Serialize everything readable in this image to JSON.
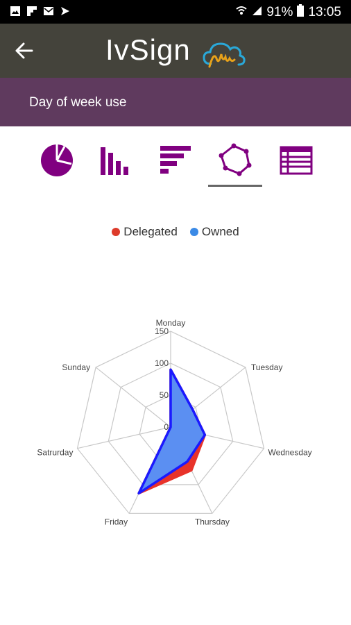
{
  "status_bar": {
    "battery": "91%",
    "time": "13:05",
    "icons": [
      "gallery-icon",
      "flipboard-icon",
      "mail-icon",
      "arrow-icon",
      "wifi-icon",
      "signal-icon",
      "battery-icon"
    ]
  },
  "app_bar": {
    "title": "IvSign",
    "back_icon": "arrow-left-icon",
    "logo_icon": "cloud-signature-logo"
  },
  "header": {
    "title": "Day of week use"
  },
  "chart_tabs": {
    "items": [
      {
        "name": "pie-chart",
        "icon": "pie-chart-icon"
      },
      {
        "name": "bar-chart",
        "icon": "bar-chart-icon"
      },
      {
        "name": "horizontal-bar-chart",
        "icon": "horizontal-bar-chart-icon"
      },
      {
        "name": "radar-chart",
        "icon": "radar-chart-icon"
      },
      {
        "name": "table",
        "icon": "table-icon"
      }
    ],
    "selected": "radar-chart",
    "accent_color": "#800080"
  },
  "chart_data": {
    "type": "radar",
    "categories": [
      "Monday",
      "Tuesday",
      "Wednesday",
      "Thursday",
      "Friday",
      "Satrurday",
      "Sunday"
    ],
    "rlim": [
      0,
      150
    ],
    "rticks": [
      0,
      50,
      100,
      150
    ],
    "legend_position": "top-center",
    "grid": true,
    "series": [
      {
        "name": "Delegated",
        "color": "#dd3b2b",
        "values": [
          90,
          44,
          55,
          75,
          115,
          0,
          0
        ]
      },
      {
        "name": "Owned",
        "color": "#3b6ff0",
        "values": [
          90,
          44,
          55,
          60,
          115,
          0,
          0
        ]
      }
    ]
  }
}
